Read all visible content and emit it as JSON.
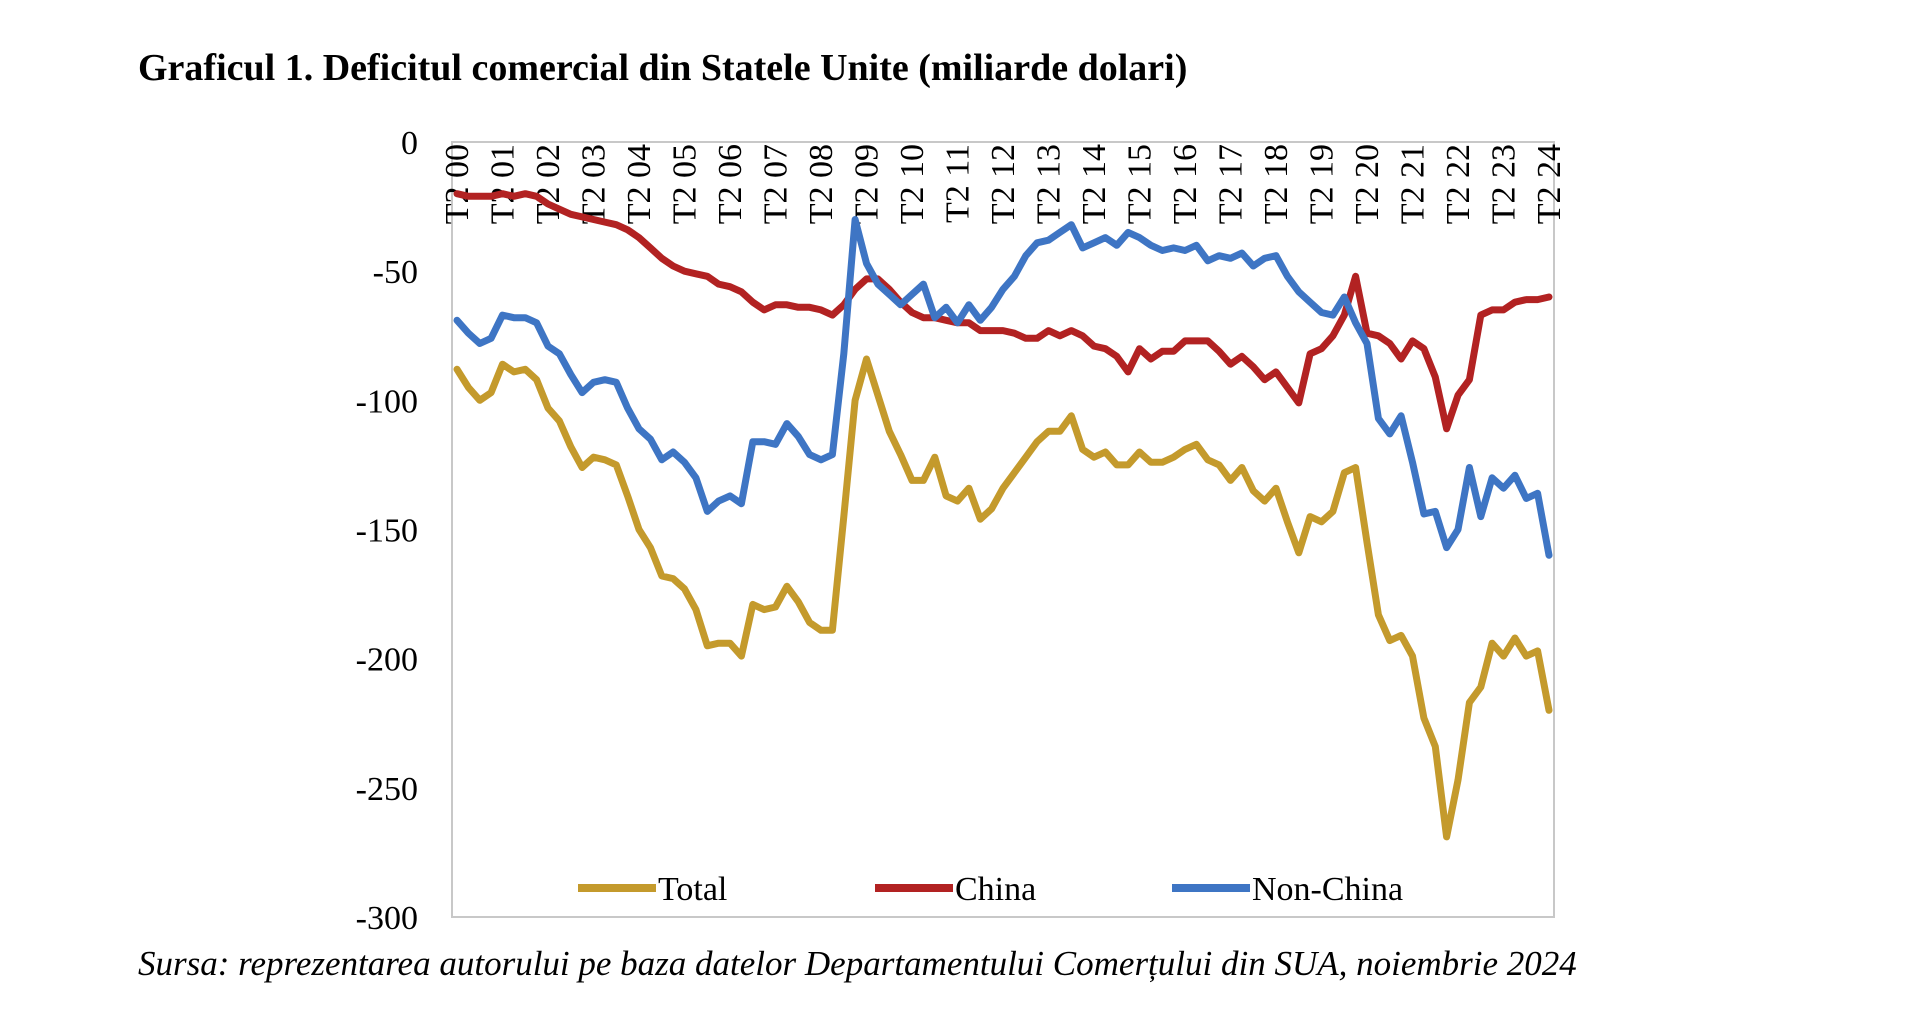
{
  "title": "Graficul 1. Deficitul comercial din Statele Unite (miliarde dolari)",
  "source": "Sursa: reprezentarea autorului pe baza datelor Departamentului Comerțului din SUA, noiembrie 2024",
  "chart_data": {
    "type": "line",
    "xlabel": "",
    "ylabel": "",
    "ylim": [
      -300,
      0
    ],
    "yticks": [
      0,
      -50,
      -100,
      -150,
      -200,
      -250,
      -300
    ],
    "grid": false,
    "legend_position": "bottom-inside",
    "x_tick_labels": [
      "T2 00",
      "T2 01",
      "T2 02",
      "T2 03",
      "T2 04",
      "T2 05",
      "T2 06",
      "T2 07",
      "T2 08",
      "T2 09",
      "T2 10",
      "T2 11",
      "T2 12",
      "T2 13",
      "T2 14",
      "T2 15",
      "T2 16",
      "T2 17",
      "T2 18",
      "T2 19",
      "T2 20",
      "T2 21",
      "T2 22",
      "T2 23",
      "T2 24"
    ],
    "x_start": "T2 00",
    "x_end": "T2 24",
    "series": [
      {
        "name": "Total",
        "color": "#C49A2C",
        "values": [
          -88,
          -95,
          -100,
          -97,
          -86,
          -89,
          -88,
          -92,
          -103,
          -108,
          -118,
          -126,
          -122,
          -123,
          -125,
          -137,
          -150,
          -157,
          -168,
          -169,
          -173,
          -181,
          -195,
          -194,
          -194,
          -199,
          -179,
          -181,
          -180,
          -172,
          -178,
          -186,
          -189,
          -189,
          -145,
          -100,
          -84,
          -98,
          -112,
          -121,
          -131,
          -131,
          -122,
          -137,
          -139,
          -134,
          -146,
          -142,
          -134,
          -128,
          -122,
          -116,
          -112,
          -112,
          -106,
          -119,
          -122,
          -120,
          -125,
          -125,
          -120,
          -124,
          -124,
          -122,
          -119,
          -117,
          -123,
          -125,
          -131,
          -126,
          -135,
          -139,
          -134,
          -147,
          -159,
          -145,
          -147,
          -143,
          -128,
          -126,
          -155,
          -183,
          -193,
          -191,
          -199,
          -223,
          -234,
          -269,
          -247,
          -217,
          -211,
          -194,
          -199,
          -192,
          -199,
          -197,
          -220
        ]
      },
      {
        "name": "China",
        "color": "#B22222",
        "values": [
          -20,
          -21,
          -21,
          -21,
          -20,
          -21,
          -20,
          -21,
          -24,
          -26,
          -28,
          -29,
          -30,
          -31,
          -32,
          -34,
          -37,
          -41,
          -45,
          -48,
          -50,
          -51,
          -52,
          -55,
          -56,
          -58,
          -62,
          -65,
          -63,
          -63,
          -64,
          -64,
          -65,
          -67,
          -63,
          -57,
          -53,
          -53,
          -57,
          -62,
          -66,
          -68,
          -68,
          -69,
          -70,
          -70,
          -73,
          -73,
          -73,
          -74,
          -76,
          -76,
          -73,
          -75,
          -73,
          -75,
          -79,
          -80,
          -83,
          -89,
          -80,
          -84,
          -81,
          -81,
          -77,
          -77,
          -77,
          -81,
          -86,
          -83,
          -87,
          -92,
          -89,
          -95,
          -101,
          -82,
          -80,
          -75,
          -67,
          -52,
          -74,
          -75,
          -78,
          -84,
          -77,
          -80,
          -91,
          -111,
          -98,
          -92,
          -67,
          -65,
          -65,
          -62,
          -61,
          -61,
          -60
        ]
      },
      {
        "name": "Non-China",
        "color": "#3E75C4",
        "values": [
          -69,
          -74,
          -78,
          -76,
          -67,
          -68,
          -68,
          -70,
          -79,
          -82,
          -90,
          -97,
          -93,
          -92,
          -93,
          -103,
          -111,
          -115,
          -123,
          -120,
          -124,
          -130,
          -143,
          -139,
          -137,
          -140,
          -116,
          -116,
          -117,
          -109,
          -114,
          -121,
          -123,
          -121,
          -82,
          -30,
          -47,
          -55,
          -59,
          -63,
          -59,
          -55,
          -68,
          -64,
          -70,
          -63,
          -69,
          -64,
          -57,
          -52,
          -44,
          -39,
          -38,
          -35,
          -32,
          -41,
          -39,
          -37,
          -40,
          -35,
          -37,
          -40,
          -42,
          -41,
          -42,
          -40,
          -46,
          -44,
          -45,
          -43,
          -48,
          -45,
          -44,
          -52,
          -58,
          -62,
          -66,
          -67,
          -60,
          -70,
          -78,
          -107,
          -113,
          -106,
          -124,
          -144,
          -143,
          -157,
          -150,
          -126,
          -145,
          -130,
          -134,
          -129,
          -138,
          -136,
          -160
        ]
      }
    ]
  }
}
